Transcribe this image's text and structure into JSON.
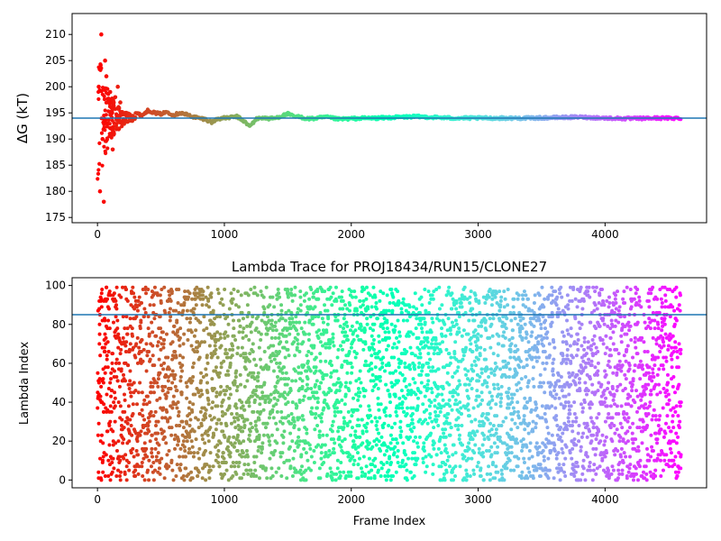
{
  "chart_data": [
    {
      "type": "scatter",
      "title": "",
      "xlabel": "",
      "ylabel": "ΔG (kT)",
      "xlim": [
        -200,
        4800
      ],
      "ylim": [
        174,
        214
      ],
      "xticks": [
        "0",
        "1000",
        "2000",
        "3000",
        "4000"
      ],
      "yticks": [
        "175",
        "180",
        "185",
        "190",
        "195",
        "200",
        "205",
        "210"
      ],
      "grid": false,
      "colormap": "rainbow (red at frame 0 → violet at frame ~4600)",
      "reference_line": {
        "y": 194.0,
        "color": "#1f77b4"
      },
      "series": [
        {
          "x": [
            10,
            20,
            30,
            40,
            50,
            60,
            70,
            80,
            90,
            100,
            110,
            120,
            130,
            140,
            150,
            160,
            170,
            180,
            200,
            220,
            240,
            260,
            280,
            300,
            350,
            400,
            450,
            500,
            550,
            600,
            650,
            700,
            750,
            800,
            850,
            900,
            950,
            1000,
            1100,
            1150,
            1200,
            1250,
            1300,
            1350,
            1400,
            1450,
            1500,
            1550,
            1600,
            1650,
            1700,
            1800,
            1900,
            2000,
            2100,
            2200,
            2300,
            2400,
            2500,
            2600,
            2700,
            2800,
            2900,
            3000,
            3200,
            3400,
            3600,
            3800,
            4000,
            4200,
            4400,
            4600
          ],
          "y": [
            200.0,
            180.0,
            210.0,
            190.0,
            178.0,
            205.0,
            202.0,
            193.0,
            197.0,
            199.0,
            196.0,
            188.0,
            191.0,
            198.0,
            194.0,
            200.0,
            192.0,
            197.0,
            193.5,
            195.0,
            193.0,
            196.0,
            194.5,
            195.0,
            194.5,
            195.5,
            195.0,
            194.8,
            195.2,
            194.6,
            195.0,
            194.7,
            194.3,
            194.0,
            193.8,
            193.2,
            193.9,
            194.0,
            194.3,
            193.5,
            192.4,
            193.8,
            194.1,
            193.9,
            194.0,
            194.4,
            194.8,
            194.3,
            194.2,
            193.9,
            193.9,
            194.2,
            193.8,
            193.9,
            194.0,
            194.0,
            194.1,
            194.2,
            194.3,
            194.2,
            194.1,
            194.0,
            194.0,
            194.0,
            194.0,
            194.0,
            194.1,
            194.2,
            194.0,
            193.9,
            194.0,
            194.0
          ]
        }
      ]
    },
    {
      "type": "scatter",
      "title": "Lambda Trace for PROJ18434/RUN15/CLONE27",
      "xlabel": "Frame Index",
      "ylabel": "Lambda Index",
      "xlim": [
        -200,
        4800
      ],
      "ylim": [
        -4,
        104
      ],
      "xticks": [
        "0",
        "1000",
        "2000",
        "3000",
        "4000"
      ],
      "yticks": [
        "0",
        "20",
        "40",
        "60",
        "80",
        "100"
      ],
      "grid": false,
      "colormap": "rainbow (red at frame 0 → violet at frame ~4600)",
      "reference_line": {
        "y": 85,
        "color": "#1f77b4"
      },
      "series": [
        {
          "point_count": 4600,
          "x_range": [
            0,
            4600
          ],
          "y_range": [
            0,
            99
          ],
          "distribution": "approximately uniform random walk over lambda indices 0–99"
        }
      ]
    }
  ]
}
